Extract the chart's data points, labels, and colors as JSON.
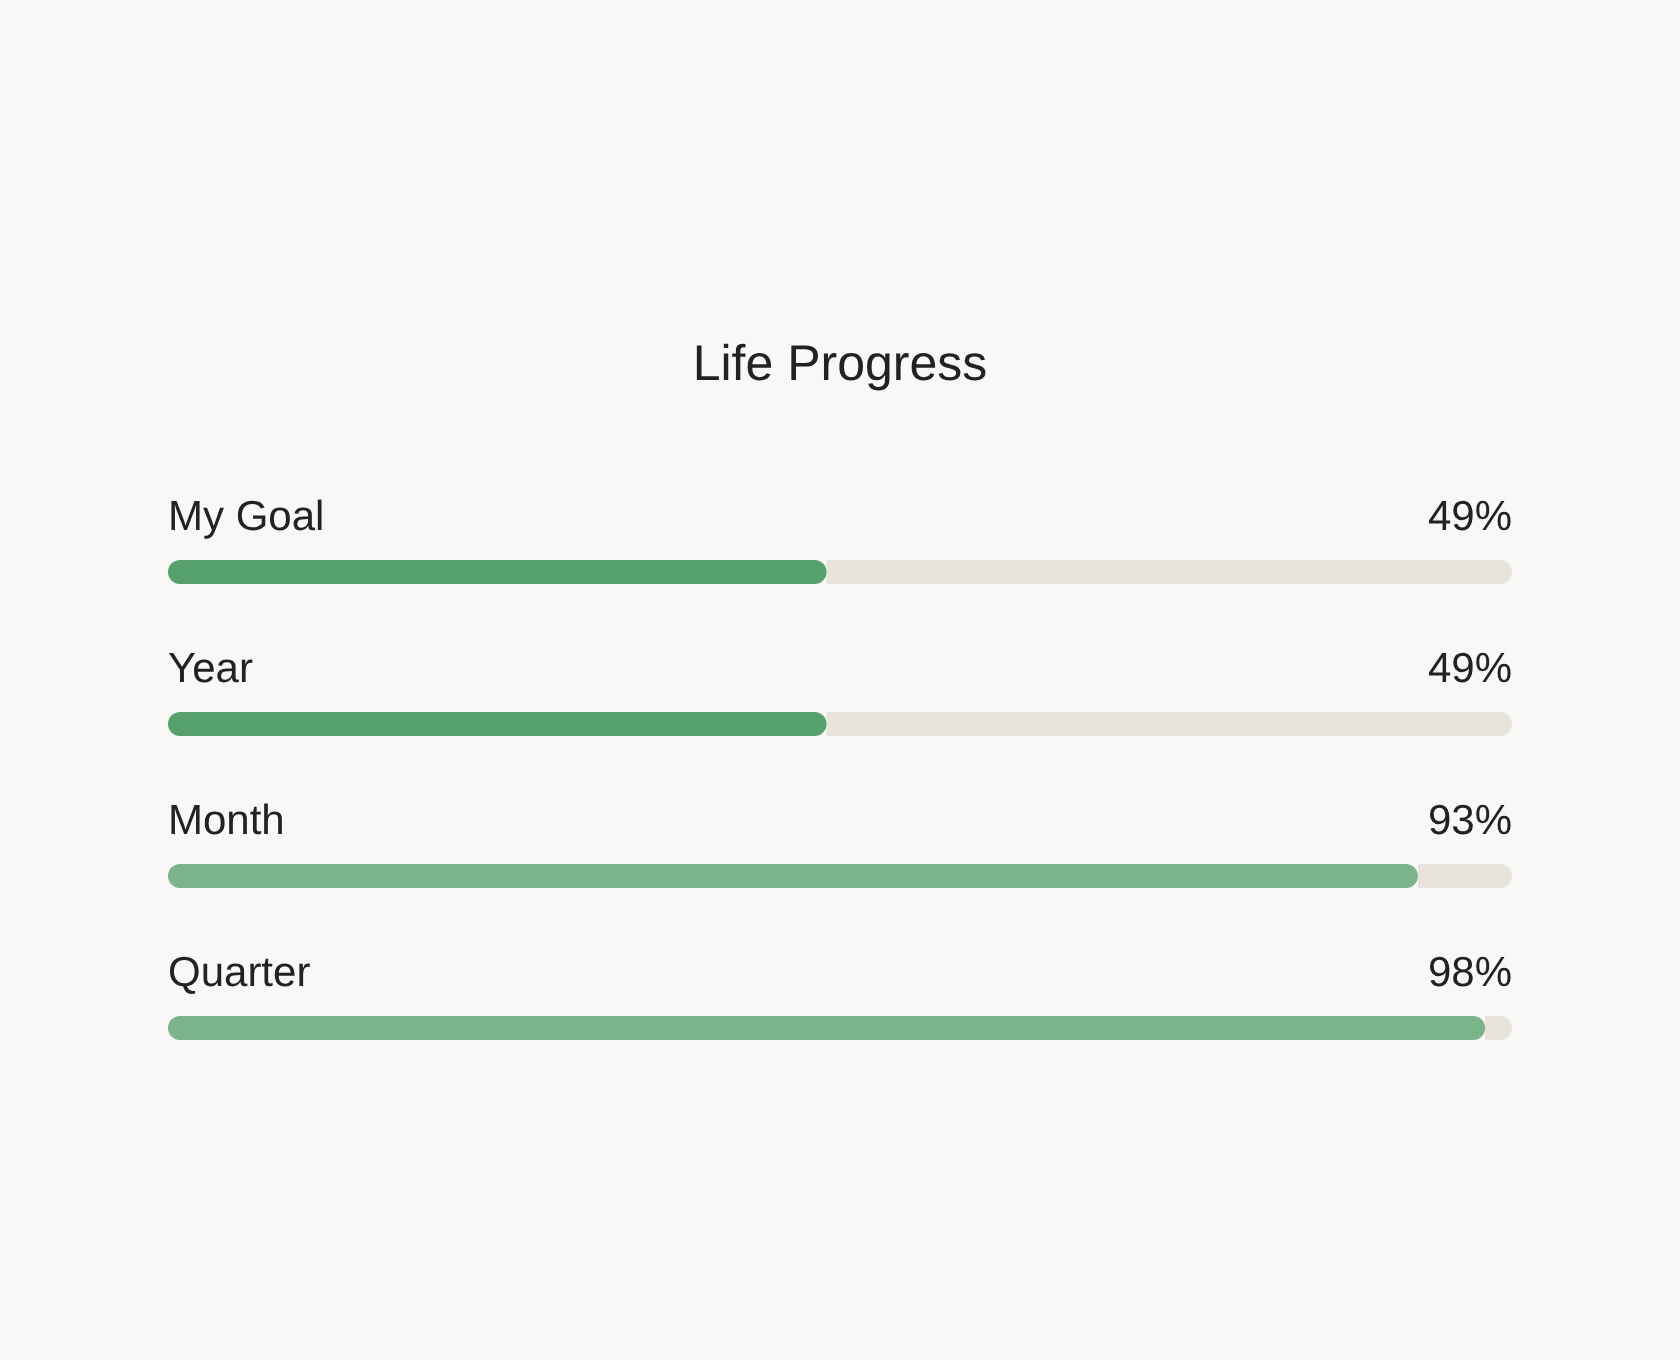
{
  "chart_data": {
    "type": "bar",
    "orientation": "horizontal",
    "title": "Life Progress",
    "categories": [
      "My Goal",
      "Year",
      "Month",
      "Quarter"
    ],
    "values": [
      49,
      49,
      93,
      98
    ],
    "value_labels": [
      "49%",
      "49%",
      "93%",
      "98%"
    ],
    "colors": [
      "#55a06c",
      "#55a06c",
      "#7bb38a",
      "#7bb38a"
    ],
    "xlim": [
      0,
      100
    ]
  }
}
